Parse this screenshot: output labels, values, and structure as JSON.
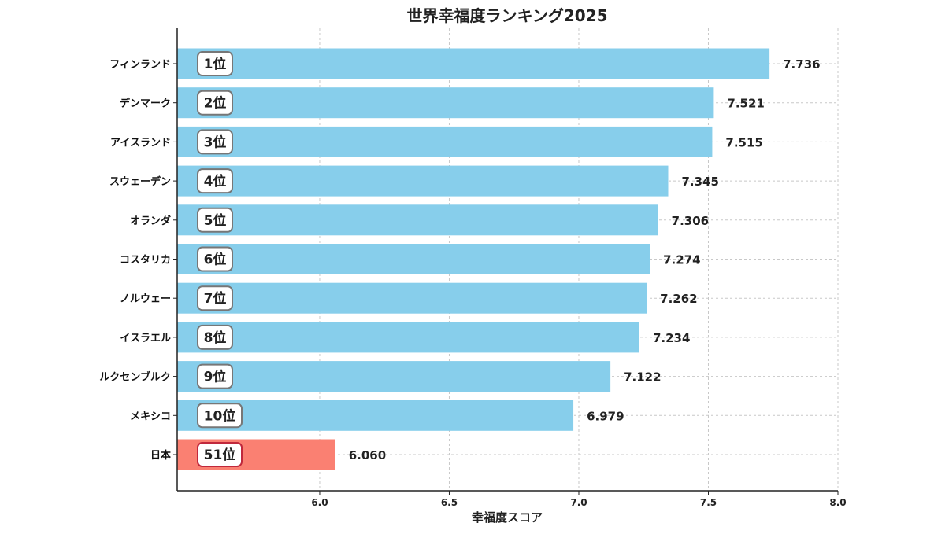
{
  "chart_data": {
    "type": "bar",
    "orientation": "horizontal",
    "title": "世界幸福度ランキング2025",
    "xlabel": "幸福度スコア",
    "ylabel": "",
    "xlim": [
      5.45,
      8.0
    ],
    "xticks": [
      "6.0",
      "6.5",
      "7.0",
      "7.5",
      "8.0"
    ],
    "grid": true,
    "categories": [
      "フィンランド",
      "デンマーク",
      "アイスランド",
      "スウェーデン",
      "オランダ",
      "コスタリカ",
      "ノルウェー",
      "イスラエル",
      "ルクセンブルク",
      "メキシコ",
      "日本"
    ],
    "values": [
      7.736,
      7.521,
      7.515,
      7.345,
      7.306,
      7.274,
      7.262,
      7.234,
      7.122,
      6.979,
      6.06
    ],
    "value_labels": [
      "7.736",
      "7.521",
      "7.515",
      "7.345",
      "7.306",
      "7.274",
      "7.262",
      "7.234",
      "7.122",
      "6.979",
      "6.060"
    ],
    "ranks": [
      "1位",
      "2位",
      "3位",
      "4位",
      "5位",
      "6位",
      "7位",
      "8位",
      "9位",
      "10位",
      "51位"
    ],
    "highlight": "日本",
    "colors": {
      "bar": "#87CEEB",
      "bar_highlight": "#FA8072",
      "badge_border": "#777777",
      "badge_border_highlight": "#C0283C"
    }
  }
}
